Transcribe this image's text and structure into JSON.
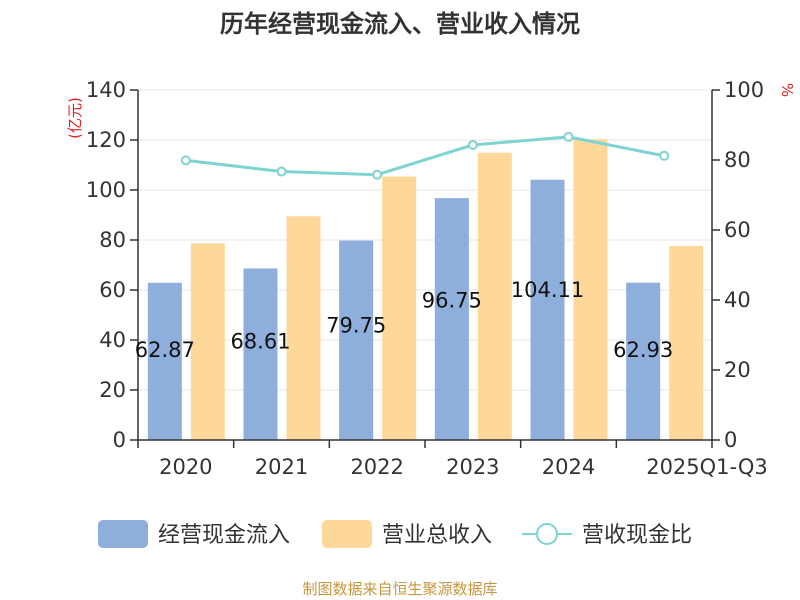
{
  "chart_data": {
    "type": "bar",
    "title": "历年经营现金流入、营业收入情况",
    "categories": [
      "2020",
      "2021",
      "2022",
      "2023",
      "2024",
      "2025Q1-Q3"
    ],
    "left_axis": {
      "unit": "亿元",
      "ylim": [
        0,
        140
      ],
      "ticks": [
        0,
        20,
        40,
        60,
        80,
        100,
        120,
        140
      ]
    },
    "right_axis": {
      "unit": "%",
      "ylim": [
        0,
        100
      ],
      "ticks": [
        0,
        20,
        40,
        60,
        80,
        100
      ]
    },
    "series": [
      {
        "name": "经营现金流入",
        "kind": "bar",
        "axis": "left",
        "color": "#8eaedb",
        "values": [
          62.87,
          68.61,
          79.75,
          96.75,
          104.11,
          62.93
        ],
        "labels": [
          "62.87",
          "68.61",
          "79.75",
          "96.75",
          "104.11",
          "62.93"
        ]
      },
      {
        "name": "营业总收入",
        "kind": "bar",
        "axis": "left",
        "color": "#fed898",
        "values": [
          78.7,
          89.5,
          105.4,
          114.9,
          120.3,
          77.6
        ]
      },
      {
        "name": "营收现金比",
        "kind": "line",
        "axis": "right",
        "color": "#7ed3d3",
        "values": [
          79.9,
          76.7,
          75.8,
          84.3,
          86.6,
          81.2
        ]
      }
    ],
    "grid": true,
    "legend_position": "bottom"
  },
  "source_text": "制图数据来自恒生聚源数据库"
}
